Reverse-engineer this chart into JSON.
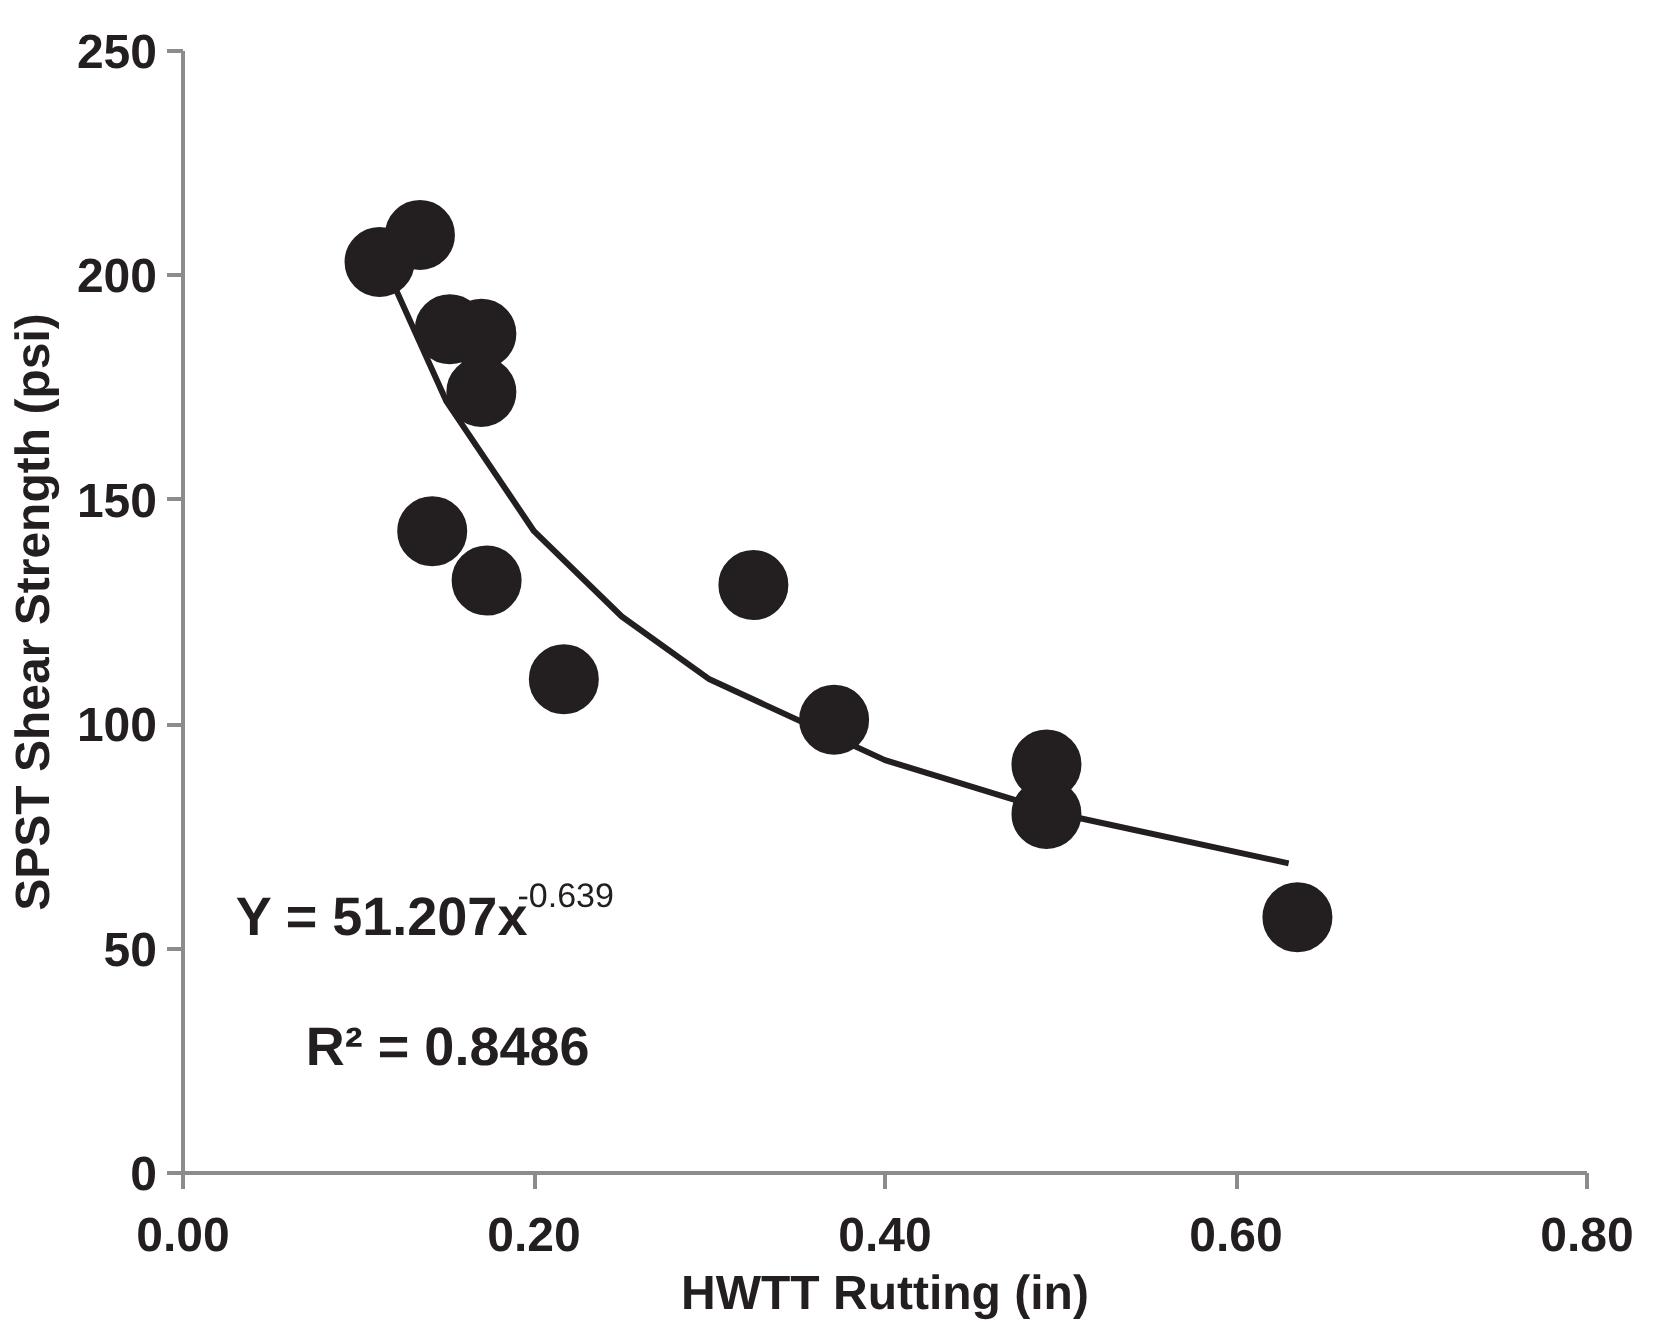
{
  "chart_data": {
    "type": "scatter",
    "xlabel": "HWTT Rutting (in)",
    "ylabel": "SPST Shear Strength (psi)",
    "xlim": [
      0,
      0.8
    ],
    "xticks": [
      {
        "value": 0,
        "label": "0.00"
      },
      {
        "value": 0.2,
        "label": "0.20"
      },
      {
        "value": 0.4,
        "label": "0.40"
      },
      {
        "value": 0.6,
        "label": "0.60"
      },
      {
        "value": 0.8,
        "label": "0.80"
      }
    ],
    "ylim": [
      0,
      250
    ],
    "yticks": [
      0,
      50,
      100,
      150,
      200,
      250
    ],
    "grid": false,
    "marker": "circle",
    "series": [
      {
        "color": "#231f20",
        "x": [
          0.112,
          0.135,
          0.152,
          0.17,
          0.17,
          0.142,
          0.173,
          0.217,
          0.325,
          0.371,
          0.492,
          0.492,
          0.635
        ],
        "values": [
          203,
          209,
          188,
          187,
          174,
          143,
          132,
          110,
          131,
          101,
          91,
          80,
          57
        ]
      },
      {
        "type": "line",
        "color": "#231f20",
        "marker": "none",
        "line_style": "solid",
        "x": [
          0.12,
          0.15,
          0.2,
          0.25,
          0.3,
          0.4,
          0.5,
          0.63
        ],
        "values": [
          198,
          172,
          143,
          124,
          110,
          92,
          80,
          69
        ]
      }
    ],
    "annotations": [
      "Y = 51.207x$^{-0.639}$",
      "R² = 0.8486"
    ]
  }
}
